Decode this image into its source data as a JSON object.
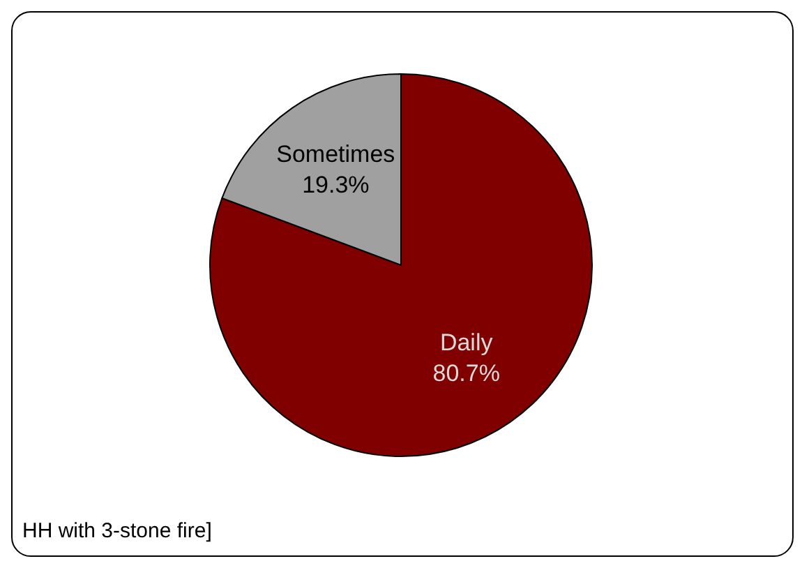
{
  "chart_data": {
    "type": "pie",
    "categories": [
      "Daily",
      "Sometimes"
    ],
    "values": [
      80.7,
      19.3
    ],
    "colors": [
      "#800000",
      "#a0a0a0"
    ],
    "value_labels": [
      "80.7%",
      "19.3%"
    ],
    "legend": false,
    "annotations": [
      "HH with 3-stone fire]"
    ]
  }
}
